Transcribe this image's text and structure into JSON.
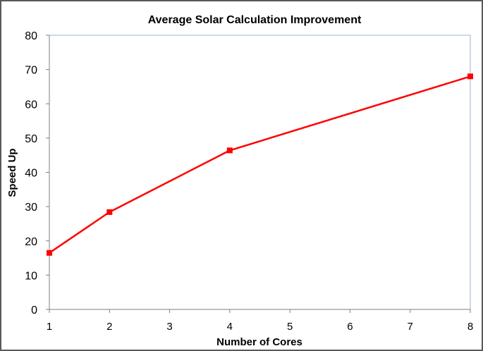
{
  "chart_data": {
    "type": "line",
    "title": "Average Solar Calculation Improvement",
    "xlabel": "Number of Cores",
    "ylabel": "Speed Up",
    "x_ticks": [
      "1",
      "2",
      "3",
      "4",
      "5",
      "6",
      "7",
      "8"
    ],
    "y_ticks": [
      "0",
      "10",
      "20",
      "30",
      "40",
      "50",
      "60",
      "70",
      "80"
    ],
    "xlim": [
      1,
      8
    ],
    "ylim": [
      0,
      80
    ],
    "grid": false,
    "legend": "none",
    "series": [
      {
        "color": "#ff0000",
        "x": [
          1,
          2,
          4,
          8
        ],
        "y": [
          16.5,
          28.4,
          46.4,
          68.0
        ]
      }
    ]
  }
}
